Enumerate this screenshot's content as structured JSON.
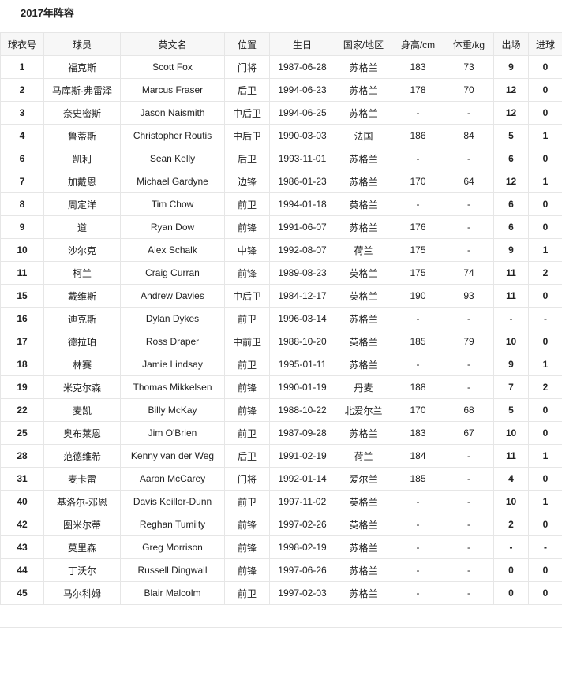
{
  "title": "2017年阵容",
  "headers": [
    "球衣号",
    "球员",
    "英文名",
    "位置",
    "生日",
    "国家/地区",
    "身高/cm",
    "体重/kg",
    "出场",
    "进球"
  ],
  "rows": [
    [
      "1",
      "福克斯",
      "Scott Fox",
      "门将",
      "1987-06-28",
      "苏格兰",
      "183",
      "73",
      "9",
      "0"
    ],
    [
      "2",
      "马库斯·弗雷泽",
      "Marcus Fraser",
      "后卫",
      "1994-06-23",
      "苏格兰",
      "178",
      "70",
      "12",
      "0"
    ],
    [
      "3",
      "奈史密斯",
      "Jason Naismith",
      "中后卫",
      "1994-06-25",
      "苏格兰",
      "-",
      "-",
      "12",
      "0"
    ],
    [
      "4",
      "鲁蒂斯",
      "Christopher Routis",
      "中后卫",
      "1990-03-03",
      "法国",
      "186",
      "84",
      "5",
      "1"
    ],
    [
      "6",
      "凯利",
      "Sean Kelly",
      "后卫",
      "1993-11-01",
      "苏格兰",
      "-",
      "-",
      "6",
      "0"
    ],
    [
      "7",
      "加戴恩",
      "Michael Gardyne",
      "边锋",
      "1986-01-23",
      "苏格兰",
      "170",
      "64",
      "12",
      "1"
    ],
    [
      "8",
      "周定洋",
      "Tim Chow",
      "前卫",
      "1994-01-18",
      "英格兰",
      "-",
      "-",
      "6",
      "0"
    ],
    [
      "9",
      "道",
      "Ryan Dow",
      "前锋",
      "1991-06-07",
      "苏格兰",
      "176",
      "-",
      "6",
      "0"
    ],
    [
      "10",
      "沙尔克",
      "Alex Schalk",
      "中锋",
      "1992-08-07",
      "荷兰",
      "175",
      "-",
      "9",
      "1"
    ],
    [
      "11",
      "柯兰",
      "Craig Curran",
      "前锋",
      "1989-08-23",
      "英格兰",
      "175",
      "74",
      "11",
      "2"
    ],
    [
      "15",
      "戴维斯",
      "Andrew Davies",
      "中后卫",
      "1984-12-17",
      "英格兰",
      "190",
      "93",
      "11",
      "0"
    ],
    [
      "16",
      "迪克斯",
      "Dylan Dykes",
      "前卫",
      "1996-03-14",
      "苏格兰",
      "-",
      "-",
      "-",
      "-"
    ],
    [
      "17",
      "德拉珀",
      "Ross Draper",
      "中前卫",
      "1988-10-20",
      "英格兰",
      "185",
      "79",
      "10",
      "0"
    ],
    [
      "18",
      "林赛",
      "Jamie Lindsay",
      "前卫",
      "1995-01-11",
      "苏格兰",
      "-",
      "-",
      "9",
      "1"
    ],
    [
      "19",
      "米克尔森",
      "Thomas Mikkelsen",
      "前锋",
      "1990-01-19",
      "丹麦",
      "188",
      "-",
      "7",
      "2"
    ],
    [
      "22",
      "麦凯",
      "Billy McKay",
      "前锋",
      "1988-10-22",
      "北爱尔兰",
      "170",
      "68",
      "5",
      "0"
    ],
    [
      "25",
      "奥布莱恩",
      "Jim O'Brien",
      "前卫",
      "1987-09-28",
      "苏格兰",
      "183",
      "67",
      "10",
      "0"
    ],
    [
      "28",
      "范德维希",
      "Kenny van der Weg",
      "后卫",
      "1991-02-19",
      "荷兰",
      "184",
      "-",
      "11",
      "1"
    ],
    [
      "31",
      "麦卡雷",
      "Aaron McCarey",
      "门将",
      "1992-01-14",
      "爱尔兰",
      "185",
      "-",
      "4",
      "0"
    ],
    [
      "40",
      "基洛尔-邓恩",
      "Davis Keillor-Dunn",
      "前卫",
      "1997-11-02",
      "英格兰",
      "-",
      "-",
      "10",
      "1"
    ],
    [
      "42",
      "图米尔蒂",
      "Reghan Tumilty",
      "前锋",
      "1997-02-26",
      "英格兰",
      "-",
      "-",
      "2",
      "0"
    ],
    [
      "43",
      "莫里森",
      "Greg Morrison",
      "前锋",
      "1998-02-19",
      "苏格兰",
      "-",
      "-",
      "-",
      "-"
    ],
    [
      "44",
      "丁沃尔",
      "Russell Dingwall",
      "前锋",
      "1997-06-26",
      "苏格兰",
      "-",
      "-",
      "0",
      "0"
    ],
    [
      "45",
      "马尔科姆",
      "Blair Malcolm",
      "前卫",
      "1997-02-03",
      "苏格兰",
      "-",
      "-",
      "0",
      "0"
    ]
  ]
}
